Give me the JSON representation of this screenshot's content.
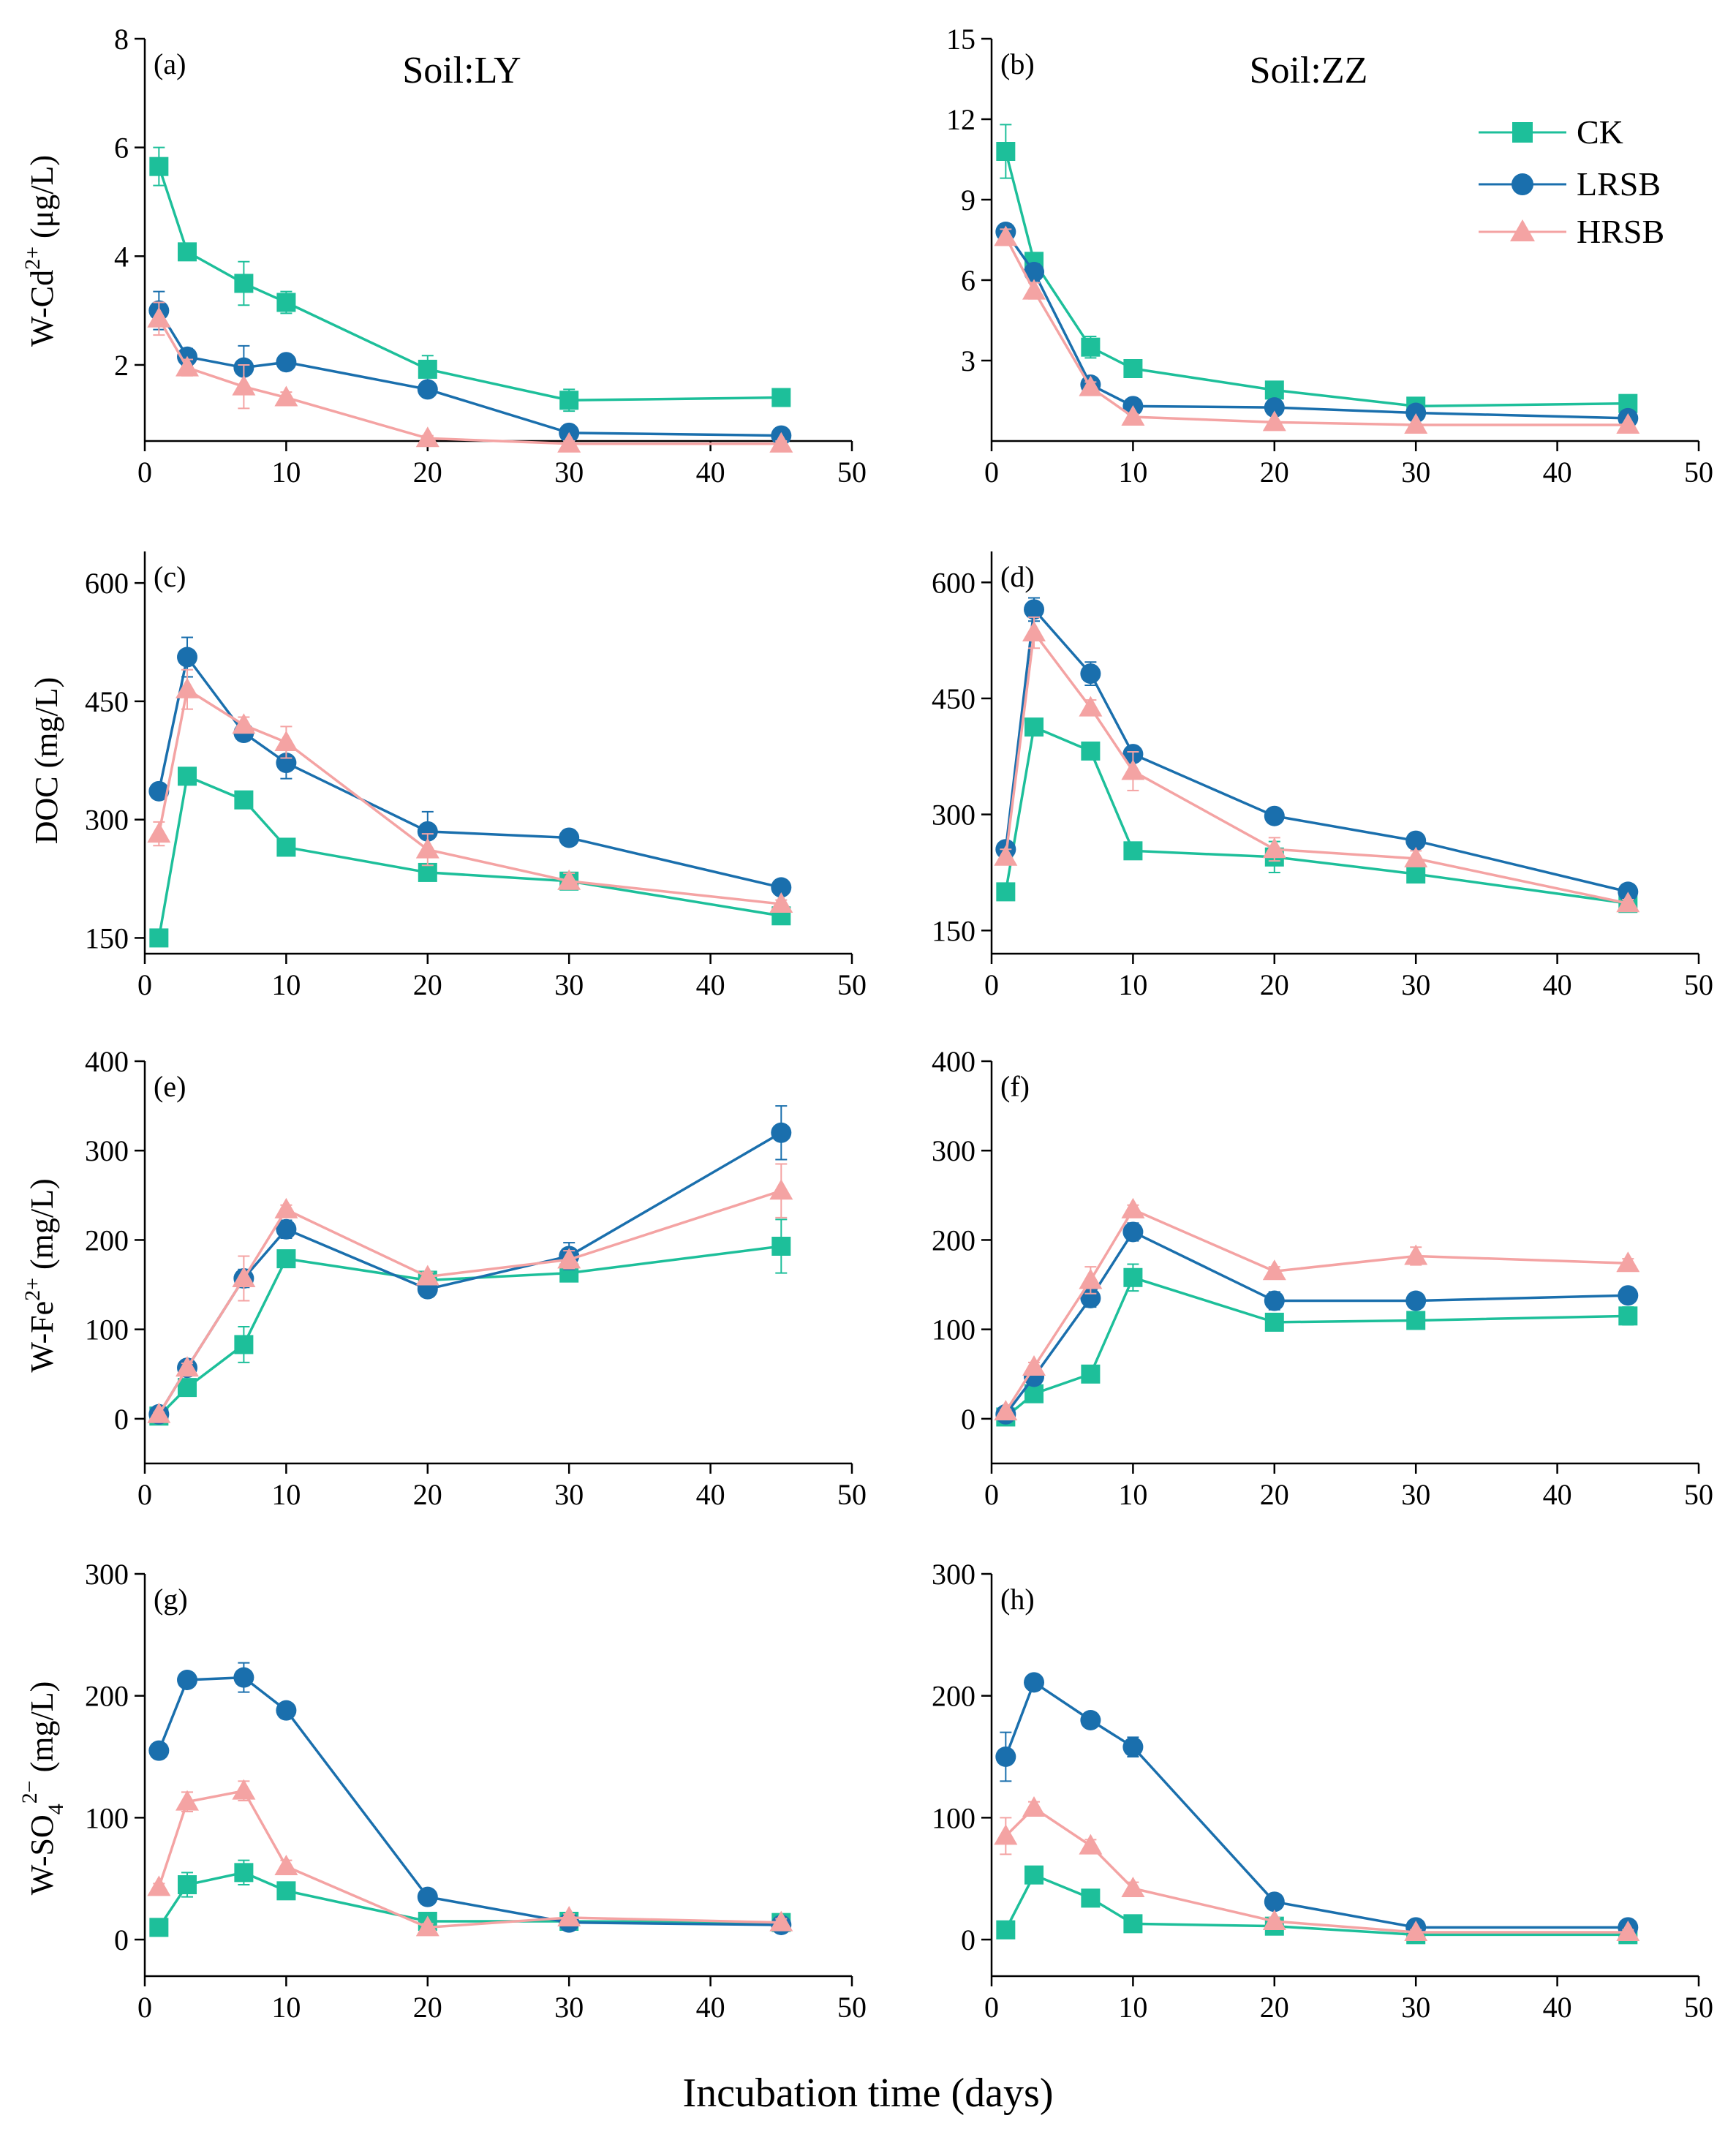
{
  "colors": {
    "CK": "#1dbf9a",
    "LRSB": "#1a6fad",
    "HRSB": "#f4a3a3"
  },
  "legend": [
    {
      "key": "CK",
      "label": "CK",
      "marker": "square"
    },
    {
      "key": "LRSB",
      "label": "LRSB",
      "marker": "circle"
    },
    {
      "key": "HRSB",
      "label": "HRSB",
      "marker": "triangle"
    }
  ],
  "xlabel": "Incubation time (days)",
  "ylabels": {
    "cd": {
      "main": "W-Cd",
      "sup": "2+",
      "unit": " (μg/L)"
    },
    "doc": {
      "main": "DOC (mg/L)"
    },
    "fe": {
      "main": "W-Fe",
      "sup": "2+",
      "unit": "  (mg/L)"
    },
    "so4": {
      "main": "W-SO",
      "sub": "4",
      "sup": "2−",
      "unit": " (mg/L)"
    }
  },
  "chart_data": [
    {
      "id": "a",
      "type": "line",
      "label": "(a)",
      "title": "Soil:LY",
      "x": [
        1,
        3,
        7,
        10,
        20,
        30,
        45
      ],
      "xlim": [
        0,
        50
      ],
      "xticks": [
        0,
        10,
        20,
        30,
        40,
        50
      ],
      "ylim": [
        0.6,
        8
      ],
      "yticks": [
        2,
        4,
        6,
        8
      ],
      "series": [
        {
          "name": "CK",
          "values": [
            5.65,
            4.08,
            3.5,
            3.15,
            1.92,
            1.35,
            1.4
          ],
          "err": [
            0.35,
            0.1,
            0.4,
            0.2,
            0.25,
            0.2,
            0.1
          ]
        },
        {
          "name": "LRSB",
          "values": [
            3.0,
            2.15,
            1.95,
            2.05,
            1.55,
            0.75,
            0.7
          ],
          "err": [
            0.35,
            0.15,
            0.4,
            0.1,
            0.1,
            0.1,
            0.05
          ]
        },
        {
          "name": "HRSB",
          "values": [
            2.85,
            1.95,
            1.6,
            1.4,
            0.65,
            0.55,
            0.55
          ],
          "err": [
            0.3,
            0.15,
            0.4,
            0.1,
            0.05,
            0.05,
            0.05
          ]
        }
      ]
    },
    {
      "id": "b",
      "type": "line",
      "label": "(b)",
      "title": "Soil:ZZ",
      "x": [
        1,
        3,
        7,
        10,
        20,
        30,
        45
      ],
      "xlim": [
        0,
        50
      ],
      "xticks": [
        0,
        10,
        20,
        30,
        40,
        50
      ],
      "ylim": [
        0,
        15
      ],
      "yticks": [
        3,
        6,
        9,
        12,
        15
      ],
      "series": [
        {
          "name": "CK",
          "values": [
            10.8,
            6.7,
            3.5,
            2.7,
            1.9,
            1.3,
            1.4
          ],
          "err": [
            1.0,
            0.3,
            0.4,
            0.2,
            0.1,
            0.1,
            0.1
          ]
        },
        {
          "name": "LRSB",
          "values": [
            7.8,
            6.3,
            2.1,
            1.3,
            1.25,
            1.05,
            0.85
          ],
          "err": [
            0.3,
            0.3,
            0.2,
            0.1,
            0.1,
            0.1,
            0.1
          ]
        },
        {
          "name": "HRSB",
          "values": [
            7.6,
            5.6,
            2.0,
            0.9,
            0.7,
            0.6,
            0.6
          ],
          "err": [
            0.3,
            0.3,
            0.2,
            0.1,
            0.05,
            0.05,
            0.05
          ]
        }
      ]
    },
    {
      "id": "c",
      "type": "line",
      "label": "(c)",
      "x": [
        1,
        3,
        7,
        10,
        20,
        30,
        45
      ],
      "xlim": [
        0,
        50
      ],
      "xticks": [
        0,
        10,
        20,
        30,
        40,
        50
      ],
      "ylim": [
        130,
        640
      ],
      "yticks": [
        150,
        300,
        450,
        600
      ],
      "series": [
        {
          "name": "CK",
          "values": [
            150,
            355,
            325,
            265,
            233,
            222,
            178
          ],
          "err": [
            0,
            5,
            5,
            5,
            5,
            5,
            5
          ]
        },
        {
          "name": "LRSB",
          "values": [
            336,
            506,
            410,
            372,
            285,
            277,
            214
          ],
          "err": [
            5,
            25,
            10,
            20,
            25,
            5,
            5
          ]
        },
        {
          "name": "HRSB",
          "values": [
            282,
            465,
            420,
            398,
            262,
            222,
            193
          ],
          "err": [
            15,
            25,
            10,
            20,
            20,
            10,
            5
          ]
        }
      ]
    },
    {
      "id": "d",
      "type": "line",
      "label": "(d)",
      "x": [
        1,
        3,
        7,
        10,
        20,
        30,
        45
      ],
      "xlim": [
        0,
        50
      ],
      "xticks": [
        0,
        10,
        20,
        30,
        40,
        50
      ],
      "ylim": [
        120,
        640
      ],
      "yticks": [
        150,
        300,
        450,
        600
      ],
      "series": [
        {
          "name": "CK",
          "values": [
            200,
            413,
            382,
            253,
            245,
            223,
            185
          ],
          "err": [
            5,
            10,
            5,
            5,
            20,
            5,
            5
          ]
        },
        {
          "name": "LRSB",
          "values": [
            255,
            565,
            482,
            378,
            298,
            266,
            200
          ],
          "err": [
            10,
            15,
            15,
            10,
            5,
            5,
            5
          ]
        },
        {
          "name": "HRSB",
          "values": [
            245,
            535,
            438,
            356,
            255,
            243,
            185
          ],
          "err": [
            10,
            20,
            10,
            25,
            15,
            10,
            5
          ]
        }
      ]
    },
    {
      "id": "e",
      "type": "line",
      "label": "(e)",
      "x": [
        1,
        3,
        7,
        10,
        20,
        30,
        45
      ],
      "xlim": [
        0,
        50
      ],
      "xticks": [
        0,
        10,
        20,
        30,
        40,
        50
      ],
      "ylim": [
        -50,
        400
      ],
      "yticks": [
        0,
        100,
        200,
        300,
        400
      ],
      "series": [
        {
          "name": "CK",
          "values": [
            3,
            35,
            83,
            179,
            155,
            163,
            193
          ],
          "err": [
            2,
            5,
            20,
            5,
            5,
            5,
            30
          ]
        },
        {
          "name": "LRSB",
          "values": [
            5,
            57,
            157,
            212,
            145,
            182,
            320
          ],
          "err": [
            2,
            5,
            10,
            10,
            5,
            15,
            30
          ]
        },
        {
          "name": "HRSB",
          "values": [
            5,
            57,
            157,
            234,
            159,
            178,
            255
          ],
          "err": [
            2,
            5,
            25,
            5,
            5,
            10,
            30
          ]
        }
      ]
    },
    {
      "id": "f",
      "type": "line",
      "label": "(f)",
      "x": [
        1,
        3,
        7,
        10,
        20,
        30,
        45
      ],
      "xlim": [
        0,
        50
      ],
      "xticks": [
        0,
        10,
        20,
        30,
        40,
        50
      ],
      "ylim": [
        -50,
        400
      ],
      "yticks": [
        0,
        100,
        200,
        300,
        400
      ],
      "series": [
        {
          "name": "CK",
          "values": [
            2,
            28,
            50,
            158,
            108,
            110,
            115
          ],
          "err": [
            2,
            5,
            5,
            15,
            5,
            5,
            10
          ]
        },
        {
          "name": "LRSB",
          "values": [
            5,
            47,
            135,
            209,
            132,
            132,
            138
          ],
          "err": [
            2,
            5,
            10,
            10,
            10,
            5,
            5
          ]
        },
        {
          "name": "HRSB",
          "values": [
            8,
            58,
            155,
            234,
            165,
            182,
            174
          ],
          "err": [
            2,
            5,
            15,
            5,
            5,
            10,
            5
          ]
        }
      ]
    },
    {
      "id": "g",
      "type": "line",
      "label": "(g)",
      "x": [
        1,
        3,
        7,
        10,
        20,
        30,
        45
      ],
      "xlim": [
        0,
        50
      ],
      "xticks": [
        0,
        10,
        20,
        30,
        40,
        50
      ],
      "ylim": [
        -30,
        300
      ],
      "yticks": [
        0,
        100,
        200,
        300
      ],
      "series": [
        {
          "name": "CK",
          "values": [
            10,
            45,
            55,
            40,
            15,
            15,
            14
          ],
          "err": [
            2,
            10,
            10,
            5,
            5,
            3,
            3
          ]
        },
        {
          "name": "LRSB",
          "values": [
            155,
            213,
            215,
            188,
            35,
            14,
            12
          ],
          "err": [
            5,
            5,
            12,
            5,
            3,
            3,
            3
          ]
        },
        {
          "name": "HRSB",
          "values": [
            43,
            113,
            122,
            60,
            10,
            18,
            14
          ],
          "err": [
            3,
            8,
            8,
            5,
            3,
            3,
            3
          ]
        }
      ]
    },
    {
      "id": "h",
      "type": "line",
      "label": "(h)",
      "x": [
        1,
        3,
        7,
        10,
        20,
        30,
        45
      ],
      "xlim": [
        0,
        50
      ],
      "xticks": [
        0,
        10,
        20,
        30,
        40,
        50
      ],
      "ylim": [
        -30,
        300
      ],
      "yticks": [
        0,
        100,
        200,
        300
      ],
      "series": [
        {
          "name": "CK",
          "values": [
            8,
            53,
            34,
            13,
            11,
            4,
            4
          ],
          "err": [
            2,
            5,
            5,
            3,
            3,
            2,
            2
          ]
        },
        {
          "name": "LRSB",
          "values": [
            150,
            211,
            180,
            158,
            31,
            10,
            10
          ],
          "err": [
            20,
            5,
            5,
            8,
            3,
            2,
            2
          ]
        },
        {
          "name": "HRSB",
          "values": [
            85,
            108,
            77,
            42,
            15,
            6,
            6
          ],
          "err": [
            15,
            5,
            5,
            5,
            3,
            2,
            2
          ]
        }
      ]
    }
  ]
}
